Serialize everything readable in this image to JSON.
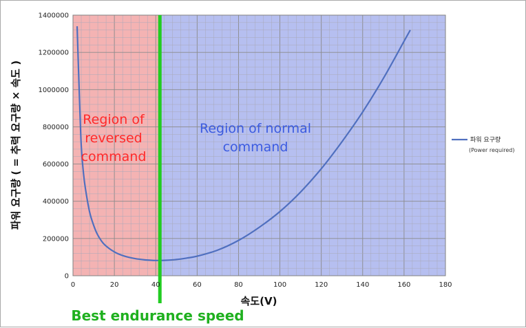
{
  "chart_data": {
    "type": "line",
    "title": "",
    "xlabel": "속도(V)",
    "ylabel": "파워 요구량 ( = 추력 요구량 × 속도 )",
    "xlim": [
      0,
      180
    ],
    "ylim": [
      0,
      1400000
    ],
    "x_ticks": [
      0,
      20,
      40,
      60,
      80,
      100,
      120,
      140,
      160,
      180
    ],
    "y_ticks": [
      0,
      200000,
      400000,
      600000,
      800000,
      1000000,
      1200000,
      1400000
    ],
    "grid": true,
    "legend_position": "right",
    "series": [
      {
        "name": "파워 요구량",
        "name_sub": "(Power required)",
        "color": "#4f6fbf",
        "x": [
          2,
          3,
          4,
          5,
          6,
          8,
          10,
          12,
          15,
          20,
          25,
          30,
          35,
          40,
          45,
          50,
          55,
          60,
          70,
          80,
          90,
          100,
          110,
          120,
          130,
          140,
          150,
          160,
          163
        ],
        "y": [
          1340000,
          1000000,
          700000,
          560000,
          470000,
          345000,
          270000,
          218000,
          170000,
          128000,
          105000,
          92000,
          85000,
          82000,
          83000,
          87000,
          95000,
          105000,
          138000,
          190000,
          260000,
          345000,
          450000,
          575000,
          720000,
          880000,
          1060000,
          1260000,
          1320000
        ]
      }
    ],
    "regions": [
      {
        "label_lines": [
          "Region of",
          "reversed",
          "command"
        ],
        "x_from": 0,
        "x_to": 42,
        "fill": "#f4b3b3",
        "text_color": "#ff2a2a"
      },
      {
        "label_lines": [
          "Region of normal",
          "command"
        ],
        "x_from": 42,
        "x_to": 180,
        "fill": "#b6bff0",
        "text_color": "#3b5be0"
      }
    ],
    "marker_line": {
      "x": 42,
      "color": "#22cc22",
      "label": "Best endurance speed"
    }
  }
}
